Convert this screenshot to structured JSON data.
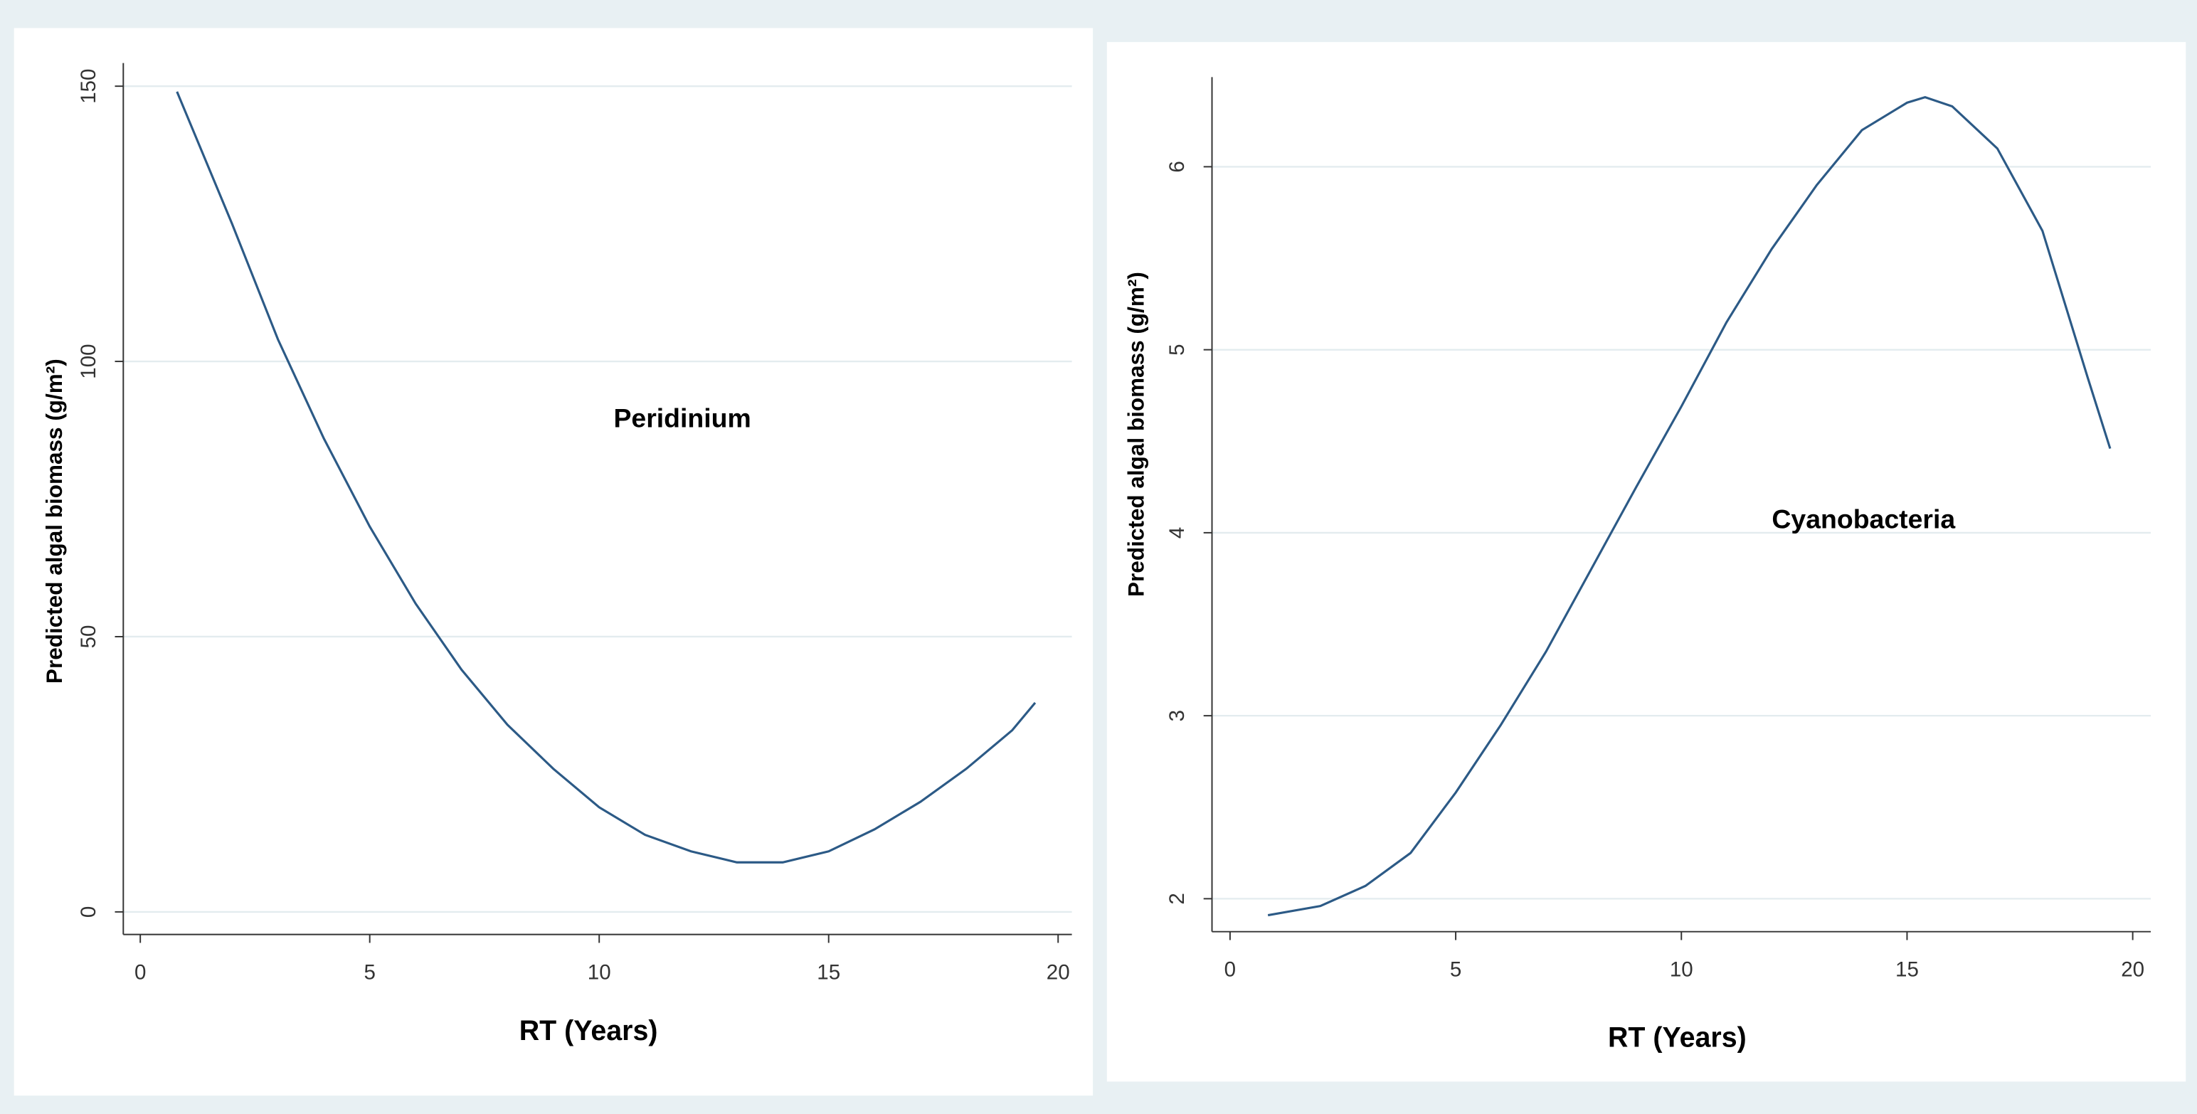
{
  "chart_data": [
    {
      "type": "line",
      "annotation": "Peridinium",
      "x_label": "RT (Years)",
      "y_label": "Predicted algal biomass (g/m²)",
      "x": [
        0.8,
        2,
        3,
        4,
        5,
        6,
        7,
        8,
        9,
        10,
        11,
        12,
        13,
        14,
        15,
        16,
        17,
        18,
        19,
        19.5
      ],
      "values": [
        149,
        125,
        104,
        86,
        70,
        56,
        44,
        34,
        26,
        19,
        14,
        11,
        9,
        9,
        11,
        15,
        20,
        26,
        33,
        38
      ],
      "color": "#2c5a86",
      "xlim": [
        -0.37,
        20.3
      ],
      "ylim": [
        -4.1,
        154.2
      ],
      "xticks": [
        0,
        5,
        10,
        15,
        20
      ],
      "yticks": [
        0,
        50,
        100,
        150
      ],
      "grid": true
    },
    {
      "type": "line",
      "annotation": "Cyanobacteria",
      "x_label": "RT (Years)",
      "y_label": "Predicted algal biomass (g/m²)",
      "x": [
        0.84,
        2,
        3,
        4,
        5,
        6,
        7,
        8,
        9,
        10,
        11,
        12,
        13,
        14,
        15,
        15.4,
        16,
        17,
        18,
        19,
        19.5
      ],
      "values": [
        1.91,
        1.96,
        2.07,
        2.25,
        2.58,
        2.95,
        3.35,
        3.8,
        4.25,
        4.69,
        5.15,
        5.55,
        5.9,
        6.2,
        6.35,
        6.38,
        6.33,
        6.1,
        5.65,
        4.85,
        4.46
      ],
      "color": "#2c5a86",
      "xlim": [
        -0.4,
        20.4
      ],
      "ylim": [
        1.82,
        6.49
      ],
      "xticks": [
        0,
        5,
        10,
        15,
        20
      ],
      "yticks": [
        2,
        3,
        4,
        5,
        6
      ],
      "grid": true
    }
  ]
}
